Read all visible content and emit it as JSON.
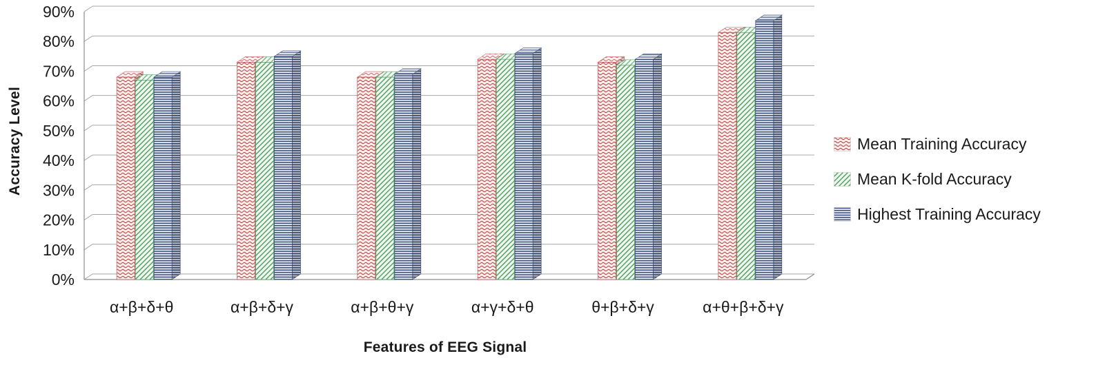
{
  "chart_data": {
    "type": "bar",
    "variant": "3d-clustered",
    "title": "",
    "xlabel": "Features of EEG Signal",
    "ylabel": "Accuracy Level",
    "ylim": [
      0,
      90
    ],
    "ytick_step": 10,
    "ytick_labels": [
      "0%",
      "10%",
      "20%",
      "30%",
      "40%",
      "50%",
      "60%",
      "70%",
      "80%",
      "90%"
    ],
    "grid": true,
    "legend_position": "right",
    "categories": [
      "α+β+δ+θ",
      "α+β+δ+γ",
      "α+β+θ+γ",
      "α+γ+δ+θ",
      "θ+β+δ+γ",
      "α+θ+β+δ+γ"
    ],
    "series": [
      {
        "name": "Mean Training Accuracy",
        "pattern": "red-weave",
        "color": "#C0504D",
        "values": [
          68,
          73,
          68,
          74,
          73,
          83
        ]
      },
      {
        "name": "Mean K-fold Accuracy",
        "pattern": "green-diagonal",
        "color": "#4CA05C",
        "values": [
          67,
          73,
          68,
          74,
          72,
          83
        ]
      },
      {
        "name": "Highest Training Accuracy",
        "pattern": "blue-horizontal",
        "color": "#2E4473",
        "values": [
          68,
          75,
          69,
          76,
          74,
          87
        ]
      }
    ]
  },
  "colors": {
    "gridline": "#a6a6a6",
    "axis": "#8c8c8c",
    "text": "#1a1a1a"
  }
}
